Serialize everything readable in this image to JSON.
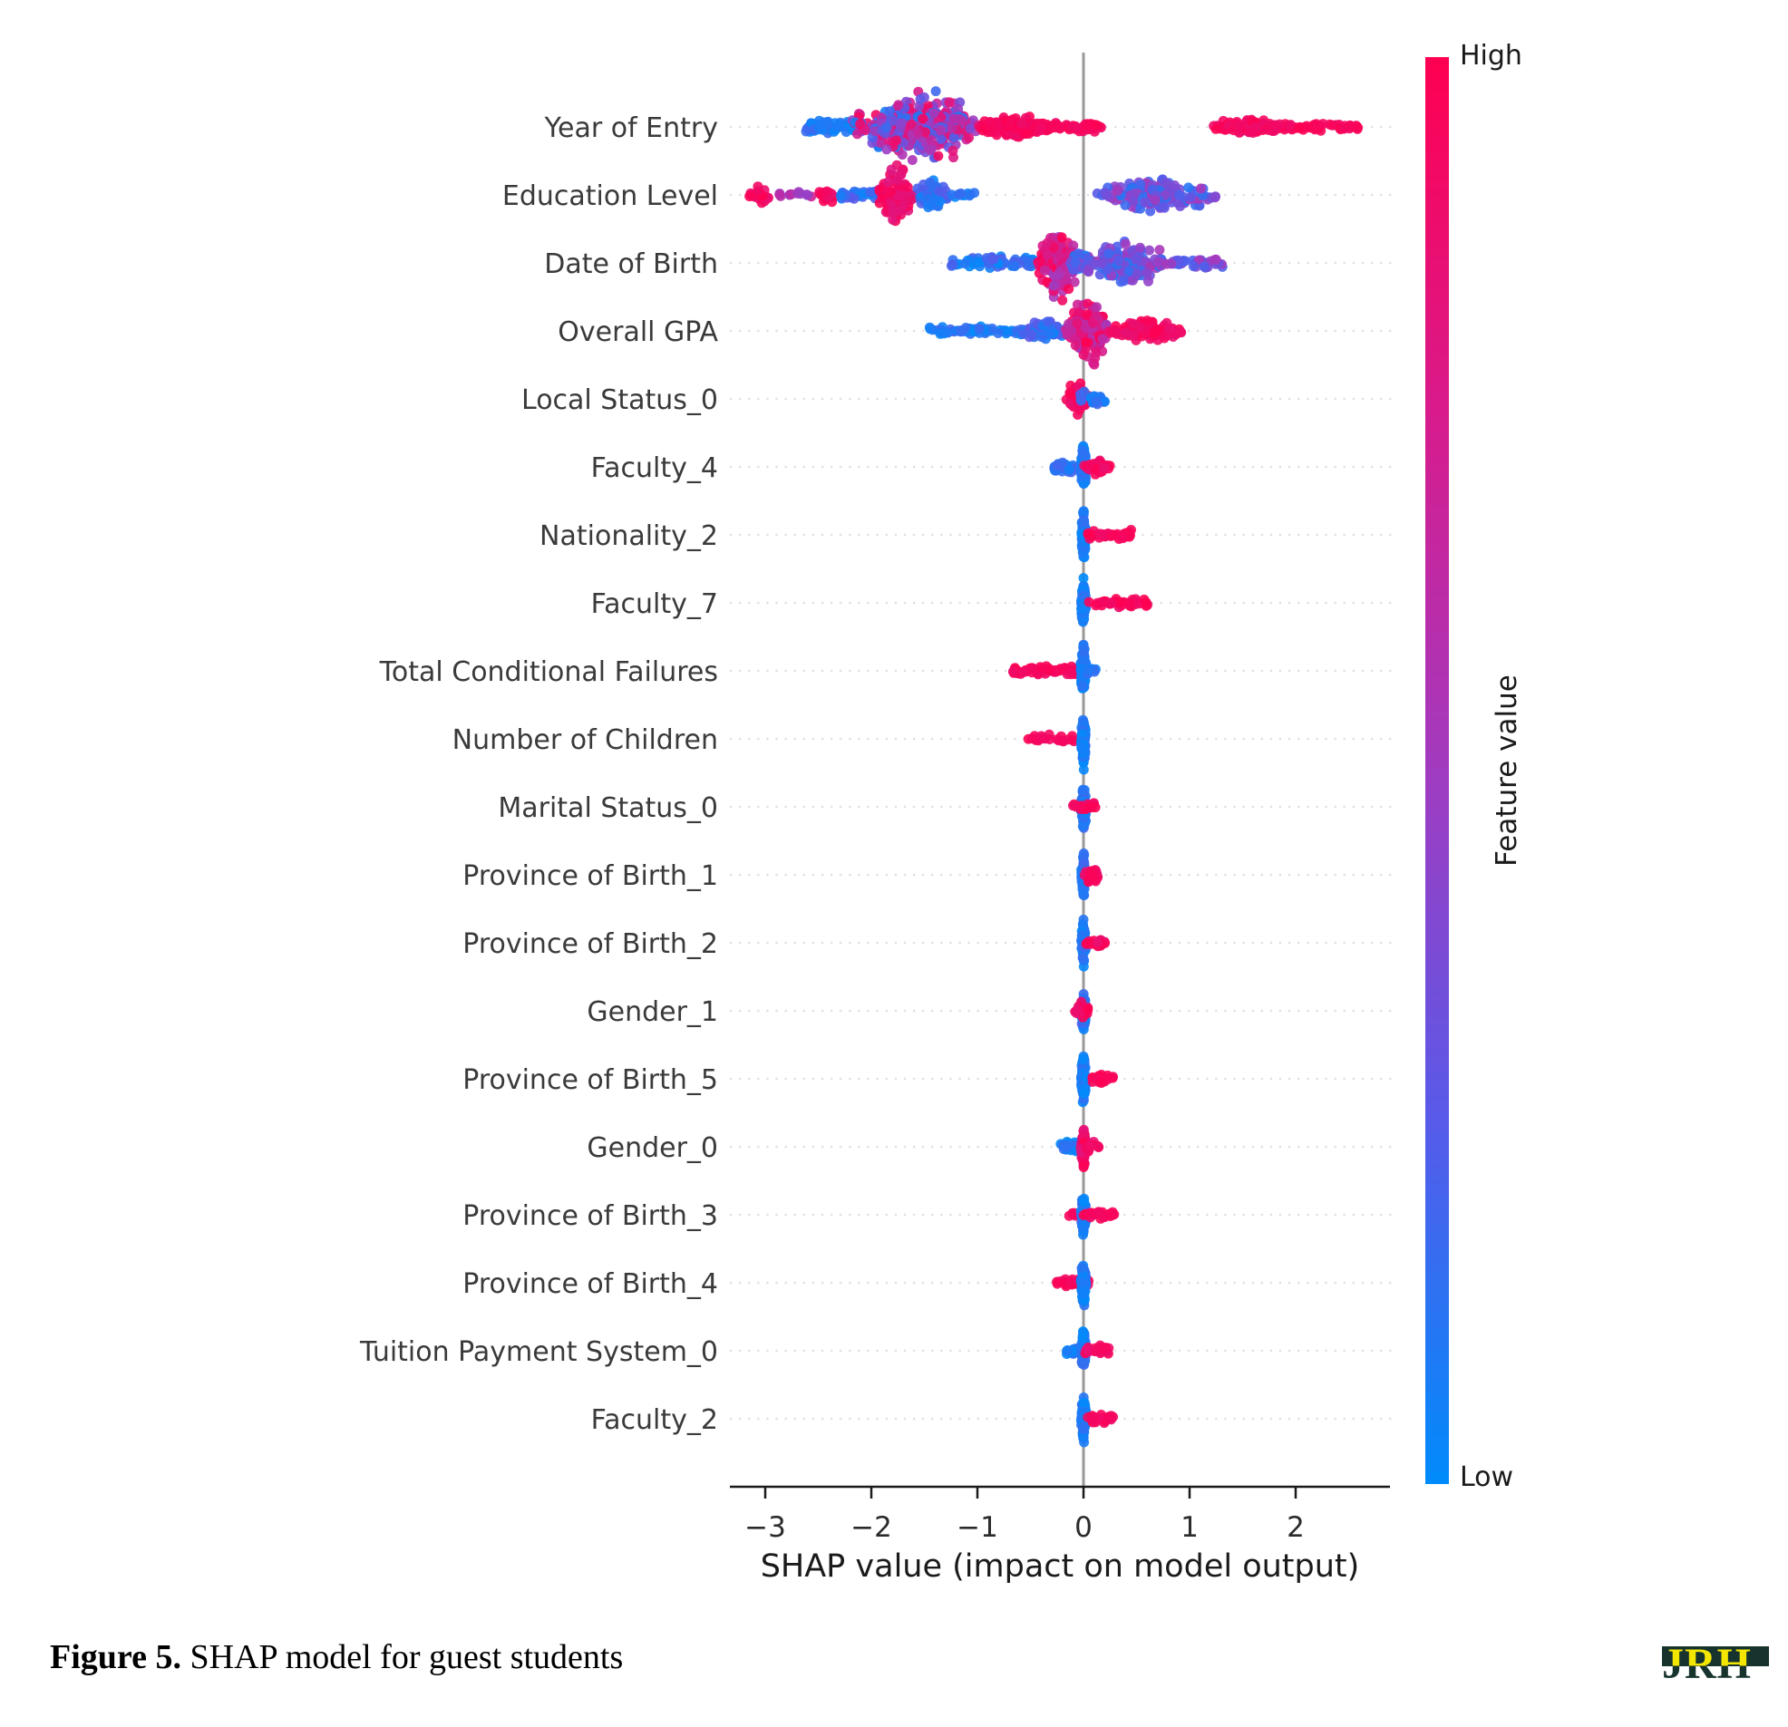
{
  "figure": {
    "caption_label": "Figure 5.",
    "caption_text": " SHAP model for guest students"
  },
  "logo": {
    "text": "JRH",
    "yellow": "#f3e600",
    "green": "#17332e"
  },
  "colorbar": {
    "high_label": "High",
    "low_label": "Low",
    "title": "Feature value",
    "high_color": "#ff0051",
    "low_color": "#008bfb",
    "gradient_stops": [
      "#ff0051",
      "#d81b8c",
      "#a13bc0",
      "#565bea",
      "#008bfb"
    ]
  },
  "chart_data": {
    "type": "scatter",
    "subtype": "shap-beeswarm-summary",
    "title": "",
    "xlabel": "SHAP value (impact on model output)",
    "ylabel": "",
    "xticks": [
      -3,
      -2,
      -1,
      0,
      1,
      2
    ],
    "xlim": [
      -3.38,
      2.88
    ],
    "zero_line_x": 0,
    "grid": "dotted-horizontal",
    "legend_position": "right-colorbar",
    "style": {
      "axis_color": "#1a1a1a",
      "grid_color": "#dedede",
      "zero_line_color": "#999999",
      "label_color": "#3a3a3a",
      "dot_radius_px": 5.5
    },
    "features": [
      {
        "label": "Year of Entry",
        "clusters": [
          {
            "x": [
              -2.62,
              -2.15
            ],
            "n": 50,
            "sp": 10,
            "t": [
              0.0,
              0.18
            ],
            "d": "flat"
          },
          {
            "x": [
              -2.25,
              -0.9
            ],
            "n": 330,
            "sp": 46,
            "t": [
              0.05,
              0.95
            ],
            "d": "tri"
          },
          {
            "x": [
              -1.0,
              -0.3
            ],
            "n": 160,
            "sp": 17,
            "t": [
              0.88,
              1.0
            ],
            "d": "tri"
          },
          {
            "x": [
              -0.45,
              0.17
            ],
            "n": 70,
            "sp": 6,
            "t": [
              0.9,
              1.0
            ],
            "d": "flat"
          },
          {
            "x": [
              1.12,
              2.0
            ],
            "n": 110,
            "sp": 12,
            "t": [
              0.88,
              1.0
            ],
            "d": "tri"
          },
          {
            "x": [
              1.95,
              2.6
            ],
            "n": 45,
            "sp": 6,
            "t": [
              0.9,
              1.0
            ],
            "d": "flat"
          }
        ]
      },
      {
        "label": "Education Level",
        "clusters": [
          {
            "x": [
              -3.17,
              -2.93
            ],
            "n": 22,
            "sp": 15,
            "t": [
              0.85,
              1.0
            ],
            "d": "tri"
          },
          {
            "x": [
              -2.88,
              -2.55
            ],
            "n": 12,
            "sp": 5,
            "t": [
              0.45,
              0.75
            ],
            "d": "flat"
          },
          {
            "x": [
              -2.52,
              -2.28
            ],
            "n": 20,
            "sp": 13,
            "t": [
              0.85,
              1.0
            ],
            "d": "tri"
          },
          {
            "x": [
              -2.3,
              -1.28
            ],
            "n": 70,
            "sp": 7,
            "t": [
              0.0,
              0.3
            ],
            "d": "flat"
          },
          {
            "x": [
              -1.95,
              -1.58
            ],
            "n": 85,
            "sp": 40,
            "t": [
              0.78,
              1.0
            ],
            "d": "tri"
          },
          {
            "x": [
              -1.58,
              -1.28
            ],
            "n": 60,
            "sp": 25,
            "t": [
              0.0,
              0.25
            ],
            "d": "tri"
          },
          {
            "x": [
              -1.25,
              -1.02
            ],
            "n": 10,
            "sp": 5,
            "t": [
              0.0,
              0.2
            ],
            "d": "flat"
          },
          {
            "x": [
              0.1,
              1.3
            ],
            "n": 150,
            "sp": 27,
            "t": [
              0.1,
              0.55
            ],
            "d": "tri"
          }
        ]
      },
      {
        "label": "Date of Birth",
        "clusters": [
          {
            "x": [
              -1.25,
              -0.35
            ],
            "n": 75,
            "sp": 8,
            "t": [
              0.0,
              0.25
            ],
            "d": "flat"
          },
          {
            "x": [
              -0.45,
              -0.03
            ],
            "n": 140,
            "sp": 50,
            "t": [
              0.5,
              1.0
            ],
            "d": "tri"
          },
          {
            "x": [
              -0.15,
              0.12
            ],
            "n": 50,
            "sp": 18,
            "t": [
              0.05,
              0.5
            ],
            "d": "tri"
          },
          {
            "x": [
              0.03,
              0.8
            ],
            "n": 150,
            "sp": 30,
            "t": [
              0.1,
              0.55
            ],
            "d": "tri"
          },
          {
            "x": [
              0.78,
              1.35
            ],
            "n": 35,
            "sp": 9,
            "t": [
              0.15,
              0.55
            ],
            "d": "flat"
          }
        ]
      },
      {
        "label": "Overall GPA",
        "clusters": [
          {
            "x": [
              -1.48,
              -0.55
            ],
            "n": 55,
            "sp": 6,
            "t": [
              0.0,
              0.2
            ],
            "d": "flat"
          },
          {
            "x": [
              -0.62,
              -0.12
            ],
            "n": 110,
            "sp": 12,
            "t": [
              0.0,
              0.3
            ],
            "d": "tri"
          },
          {
            "x": [
              -0.18,
              0.25
            ],
            "n": 170,
            "sp": 44,
            "t": [
              0.5,
              1.0
            ],
            "d": "tri"
          },
          {
            "x": [
              0.2,
              0.97
            ],
            "n": 110,
            "sp": 15,
            "t": [
              0.85,
              1.0
            ],
            "d": "tri"
          }
        ]
      },
      {
        "label": "Local Status_0",
        "clusters": [
          {
            "x": [
              -0.18,
              0.05
            ],
            "n": 55,
            "sp": 28,
            "t": [
              0.85,
              1.0
            ],
            "d": "tri"
          },
          {
            "x": [
              -0.05,
              0.05
            ],
            "n": 6,
            "sp": 12,
            "t": [
              0.05,
              0.3
            ],
            "d": "tri"
          },
          {
            "x": [
              0.02,
              0.23
            ],
            "n": 26,
            "sp": 9,
            "t": [
              0.0,
              0.2
            ],
            "d": "tri"
          }
        ]
      },
      {
        "label": "Faculty_4",
        "clusters": [
          {
            "x": [
              -0.28,
              -0.02
            ],
            "n": 35,
            "sp": 8,
            "t": [
              0.0,
              0.2
            ],
            "d": "flat"
          },
          {
            "x": [
              -0.03,
              0.03
            ],
            "n": 110,
            "sp": 30,
            "t": [
              0.0,
              0.15
            ],
            "d": "tri"
          },
          {
            "x": [
              0.0,
              0.28
            ],
            "n": 40,
            "sp": 12,
            "t": [
              0.85,
              1.0
            ],
            "d": "tri"
          }
        ]
      },
      {
        "label": "Nationality_2",
        "clusters": [
          {
            "x": [
              -0.025,
              0.025
            ],
            "n": 130,
            "sp": 32,
            "t": [
              0.0,
              0.15
            ],
            "d": "tri"
          },
          {
            "x": [
              0.04,
              0.45
            ],
            "n": 38,
            "sp": 6,
            "t": [
              0.9,
              1.0
            ],
            "d": "flat"
          }
        ]
      },
      {
        "label": "Faculty_7",
        "clusters": [
          {
            "x": [
              -0.025,
              0.025
            ],
            "n": 130,
            "sp": 30,
            "t": [
              0.0,
              0.15
            ],
            "d": "tri"
          },
          {
            "x": [
              0.04,
              0.62
            ],
            "n": 42,
            "sp": 6,
            "t": [
              0.9,
              1.0
            ],
            "d": "flat"
          }
        ]
      },
      {
        "label": "Total Conditional Failures",
        "clusters": [
          {
            "x": [
              -0.68,
              -0.02
            ],
            "n": 60,
            "sp": 7,
            "t": [
              0.9,
              1.0
            ],
            "d": "flat"
          },
          {
            "x": [
              -0.03,
              0.03
            ],
            "n": 150,
            "sp": 34,
            "t": [
              0.0,
              0.15
            ],
            "d": "tri"
          },
          {
            "x": [
              0.03,
              0.12
            ],
            "n": 10,
            "sp": 6,
            "t": [
              0.0,
              0.2
            ],
            "d": "flat"
          }
        ]
      },
      {
        "label": "Number of Children",
        "clusters": [
          {
            "x": [
              -0.53,
              -0.32
            ],
            "n": 13,
            "sp": 5,
            "t": [
              0.9,
              1.0
            ],
            "d": "flat"
          },
          {
            "x": [
              -0.25,
              -0.09
            ],
            "n": 9,
            "sp": 5,
            "t": [
              0.9,
              1.0
            ],
            "d": "flat"
          },
          {
            "x": [
              -0.025,
              0.025
            ],
            "n": 140,
            "sp": 36,
            "t": [
              0.0,
              0.15
            ],
            "d": "tri"
          }
        ]
      },
      {
        "label": "Marital Status_0",
        "clusters": [
          {
            "x": [
              -0.03,
              0.03
            ],
            "n": 100,
            "sp": 30,
            "t": [
              0.0,
              0.2
            ],
            "d": "tri"
          },
          {
            "x": [
              -0.12,
              0.12
            ],
            "n": 22,
            "sp": 10,
            "t": [
              0.85,
              1.0
            ],
            "d": "tri"
          }
        ]
      },
      {
        "label": "Province of Birth_1",
        "clusters": [
          {
            "x": [
              -0.025,
              0.025
            ],
            "n": 100,
            "sp": 28,
            "t": [
              0.0,
              0.2
            ],
            "d": "tri"
          },
          {
            "x": [
              0.0,
              0.17
            ],
            "n": 26,
            "sp": 13,
            "t": [
              0.85,
              1.0
            ],
            "d": "tri"
          }
        ]
      },
      {
        "label": "Province of Birth_2",
        "clusters": [
          {
            "x": [
              -0.025,
              0.025
            ],
            "n": 100,
            "sp": 30,
            "t": [
              0.0,
              0.2
            ],
            "d": "tri"
          },
          {
            "x": [
              0.02,
              0.22
            ],
            "n": 20,
            "sp": 6,
            "t": [
              0.85,
              1.0
            ],
            "d": "flat"
          }
        ]
      },
      {
        "label": "Gender_1",
        "clusters": [
          {
            "x": [
              -0.03,
              0.03
            ],
            "n": 85,
            "sp": 26,
            "t": [
              0.0,
              0.25
            ],
            "d": "tri"
          },
          {
            "x": [
              -0.11,
              0.07
            ],
            "n": 20,
            "sp": 12,
            "t": [
              0.85,
              1.0
            ],
            "d": "tri"
          }
        ]
      },
      {
        "label": "Province of Birth_5",
        "clusters": [
          {
            "x": [
              -0.025,
              0.025
            ],
            "n": 120,
            "sp": 34,
            "t": [
              0.0,
              0.15
            ],
            "d": "tri"
          },
          {
            "x": [
              0.06,
              0.28
            ],
            "n": 20,
            "sp": 6,
            "t": [
              0.9,
              1.0
            ],
            "d": "flat"
          }
        ]
      },
      {
        "label": "Gender_0",
        "clusters": [
          {
            "x": [
              -0.22,
              -0.02
            ],
            "n": 28,
            "sp": 8,
            "t": [
              0.0,
              0.2
            ],
            "d": "flat"
          },
          {
            "x": [
              -0.03,
              0.03
            ],
            "n": 75,
            "sp": 30,
            "t": [
              0.8,
              1.0
            ],
            "d": "tri"
          },
          {
            "x": [
              0.02,
              0.16
            ],
            "n": 14,
            "sp": 7,
            "t": [
              0.85,
              1.0
            ],
            "d": "flat"
          }
        ]
      },
      {
        "label": "Province of Birth_3",
        "clusters": [
          {
            "x": [
              -0.14,
              -0.04
            ],
            "n": 7,
            "sp": 5,
            "t": [
              0.85,
              1.0
            ],
            "d": "flat"
          },
          {
            "x": [
              -0.025,
              0.025
            ],
            "n": 100,
            "sp": 30,
            "t": [
              0.0,
              0.2
            ],
            "d": "tri"
          },
          {
            "x": [
              0.0,
              0.3
            ],
            "n": 28,
            "sp": 6,
            "t": [
              0.9,
              1.0
            ],
            "d": "flat"
          }
        ]
      },
      {
        "label": "Province of Birth_4",
        "clusters": [
          {
            "x": [
              -0.26,
              0.05
            ],
            "n": 32,
            "sp": 6,
            "t": [
              0.9,
              1.0
            ],
            "d": "flat"
          },
          {
            "x": [
              -0.025,
              0.025
            ],
            "n": 120,
            "sp": 36,
            "t": [
              0.0,
              0.15
            ],
            "d": "tri"
          }
        ]
      },
      {
        "label": "Tuition Payment System_0",
        "clusters": [
          {
            "x": [
              -0.16,
              -0.02
            ],
            "n": 18,
            "sp": 6,
            "t": [
              0.0,
              0.2
            ],
            "d": "flat"
          },
          {
            "x": [
              -0.025,
              0.025
            ],
            "n": 100,
            "sp": 30,
            "t": [
              0.0,
              0.2
            ],
            "d": "tri"
          },
          {
            "x": [
              0.0,
              0.26
            ],
            "n": 22,
            "sp": 7,
            "t": [
              0.85,
              1.0
            ],
            "d": "flat"
          }
        ]
      },
      {
        "label": "Faculty_2",
        "clusters": [
          {
            "x": [
              -0.025,
              0.025
            ],
            "n": 110,
            "sp": 34,
            "t": [
              0.0,
              0.15
            ],
            "d": "tri"
          },
          {
            "x": [
              0.04,
              0.28
            ],
            "n": 20,
            "sp": 6,
            "t": [
              0.9,
              1.0
            ],
            "d": "flat"
          }
        ]
      }
    ]
  }
}
